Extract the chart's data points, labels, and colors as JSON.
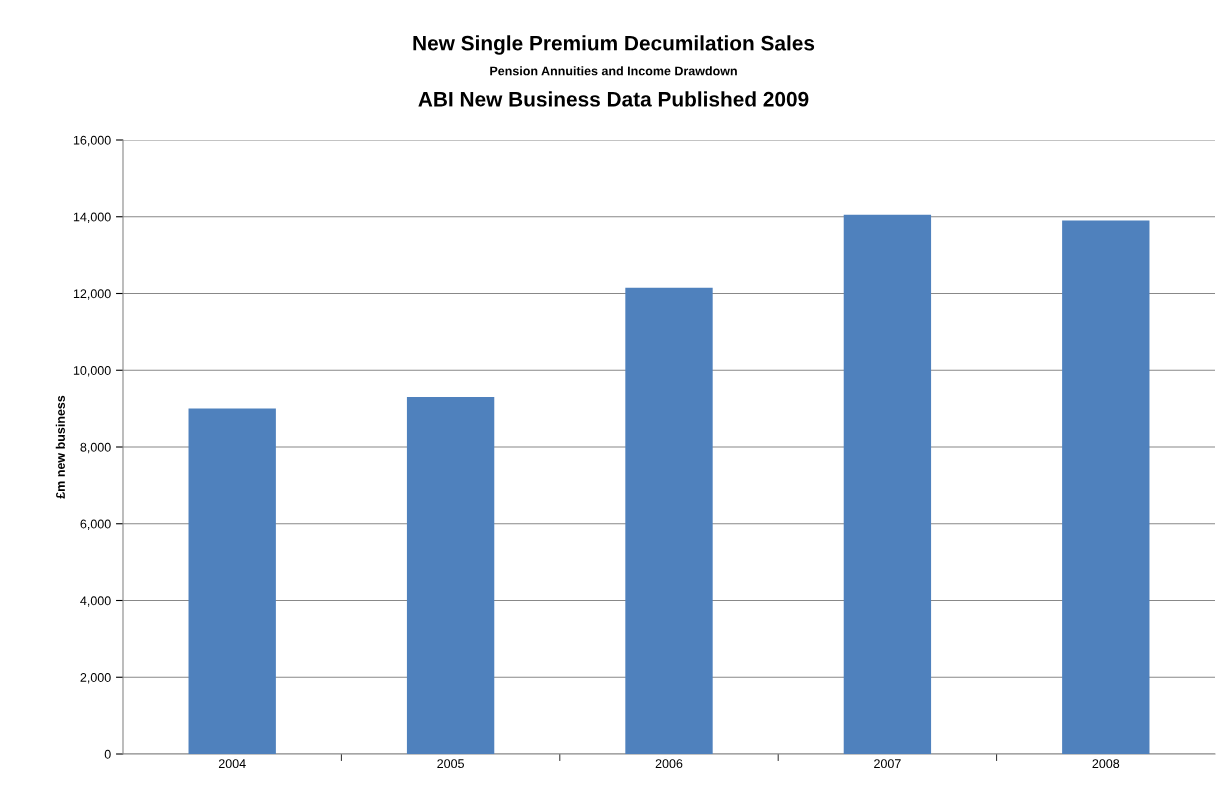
{
  "chart_data": {
    "type": "bar",
    "title": "New Single Premium Decumilation Sales",
    "subtitle": "Pension Annuities and Income Drawdown",
    "annotations": [
      "ABI New Business Data Published 2009"
    ],
    "ylabel": "£m new business",
    "categories": [
      "2004",
      "2005",
      "2006",
      "2007",
      "2008"
    ],
    "values": [
      9000,
      9300,
      12150,
      14050,
      13900
    ],
    "color": "#4f81bd",
    "ylim": [
      0,
      16000
    ],
    "yticks": [
      {
        "value": 0,
        "label": "0"
      },
      {
        "value": 2000,
        "label": "2,000"
      },
      {
        "value": 4000,
        "label": "4,000"
      },
      {
        "value": 6000,
        "label": "6,000"
      },
      {
        "value": 8000,
        "label": "8,000"
      },
      {
        "value": 10000,
        "label": "10,000"
      },
      {
        "value": 12000,
        "label": "12,000"
      },
      {
        "value": 14000,
        "label": "14,000"
      },
      {
        "value": 16000,
        "label": "16,000"
      }
    ],
    "grid": "y",
    "legend": false
  }
}
